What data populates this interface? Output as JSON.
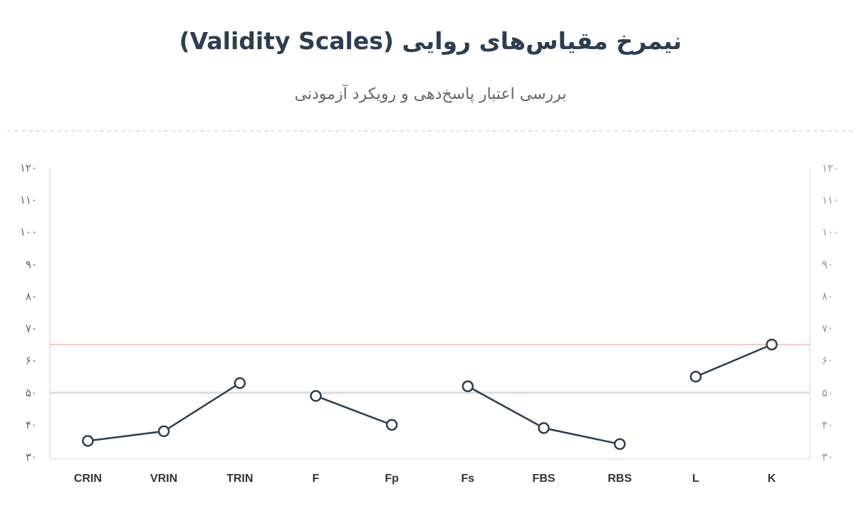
{
  "header": {
    "title": "نیمرخ مقیاس‌های روایی (Validity Scales)",
    "subtitle": "بررسی اعتبار پاسخ‌دهی و رویکرد آزمودنی"
  },
  "colors": {
    "line": "#2c3e50",
    "threshold": "#f4a6a6",
    "midline": "#dddddd",
    "axis": "#e0e0e0"
  },
  "chart_data": {
    "type": "line",
    "title": "نیمرخ مقیاس‌های روایی (Validity Scales)",
    "subtitle": "بررسی اعتبار پاسخ‌دهی و رویکرد آزمودنی",
    "xlabel": "",
    "ylabel": "",
    "ylim": [
      30,
      120
    ],
    "yticks": [
      30,
      40,
      50,
      60,
      70,
      80,
      90,
      100,
      110,
      120
    ],
    "ytick_labels": [
      "۳۰",
      "۴۰",
      "۵۰",
      "۶۰",
      "۷۰",
      "۸۰",
      "۹۰",
      "۱۰۰",
      "۱۱۰",
      "۱۲۰"
    ],
    "categories": [
      "CRIN",
      "VRIN",
      "TRIN",
      "F",
      "Fp",
      "Fs",
      "FBS",
      "RBS",
      "L",
      "K"
    ],
    "values": [
      35,
      38,
      53,
      49,
      40,
      52,
      39,
      34,
      55,
      65
    ],
    "segments": [
      [
        0,
        1,
        2
      ],
      [
        3,
        4
      ],
      [
        5,
        6,
        7
      ],
      [
        8,
        9
      ]
    ],
    "reference_lines": [
      {
        "value": 50,
        "color": "#dddddd"
      },
      {
        "value": 65,
        "color": "#f4a6a6"
      }
    ],
    "grid": false,
    "dual_y_axis": true
  }
}
